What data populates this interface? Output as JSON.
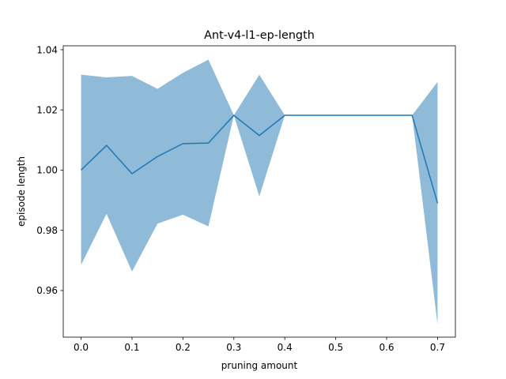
{
  "chart_data": {
    "type": "line",
    "title": "Ant-v4-l1-ep-length",
    "xlabel": "pruning amount",
    "ylabel": "episode length",
    "xlim": [
      -0.035,
      0.735
    ],
    "ylim": [
      0.9445,
      1.0413
    ],
    "xticks": [
      0.0,
      0.1,
      0.2,
      0.3,
      0.4,
      0.5,
      0.6,
      0.7
    ],
    "xtick_labels": [
      "0.0",
      "0.1",
      "0.2",
      "0.3",
      "0.4",
      "0.5",
      "0.6",
      "0.7"
    ],
    "yticks": [
      0.96,
      0.98,
      1.0,
      1.02,
      1.04
    ],
    "ytick_labels": [
      "0.96",
      "0.98",
      "1.00",
      "1.02",
      "1.04"
    ],
    "grid": false,
    "colors": {
      "line": "#1f77b4",
      "band": "#1f77b4"
    },
    "series": [
      {
        "x": [
          0.0,
          0.05,
          0.1,
          0.15,
          0.2,
          0.25,
          0.3,
          0.35,
          0.4,
          0.45,
          0.5,
          0.55,
          0.6,
          0.65,
          0.7
        ],
        "mean": [
          1.0,
          1.0082,
          0.9988,
          1.0045,
          1.0088,
          1.009,
          1.0182,
          1.0115,
          1.0182,
          1.0182,
          1.0182,
          1.0182,
          1.0182,
          1.0182,
          0.989
        ],
        "upper": [
          1.0317,
          1.0308,
          1.0313,
          1.027,
          1.0323,
          1.0367,
          1.0182,
          1.0317,
          1.0182,
          1.0182,
          1.0182,
          1.0182,
          1.0182,
          1.0182,
          1.0293
        ],
        "lower": [
          0.9685,
          0.9855,
          0.9663,
          0.9822,
          0.9852,
          0.9813,
          1.0182,
          0.9913,
          1.0182,
          1.0182,
          1.0182,
          1.0182,
          1.0182,
          1.0182,
          0.9487
        ]
      }
    ]
  }
}
